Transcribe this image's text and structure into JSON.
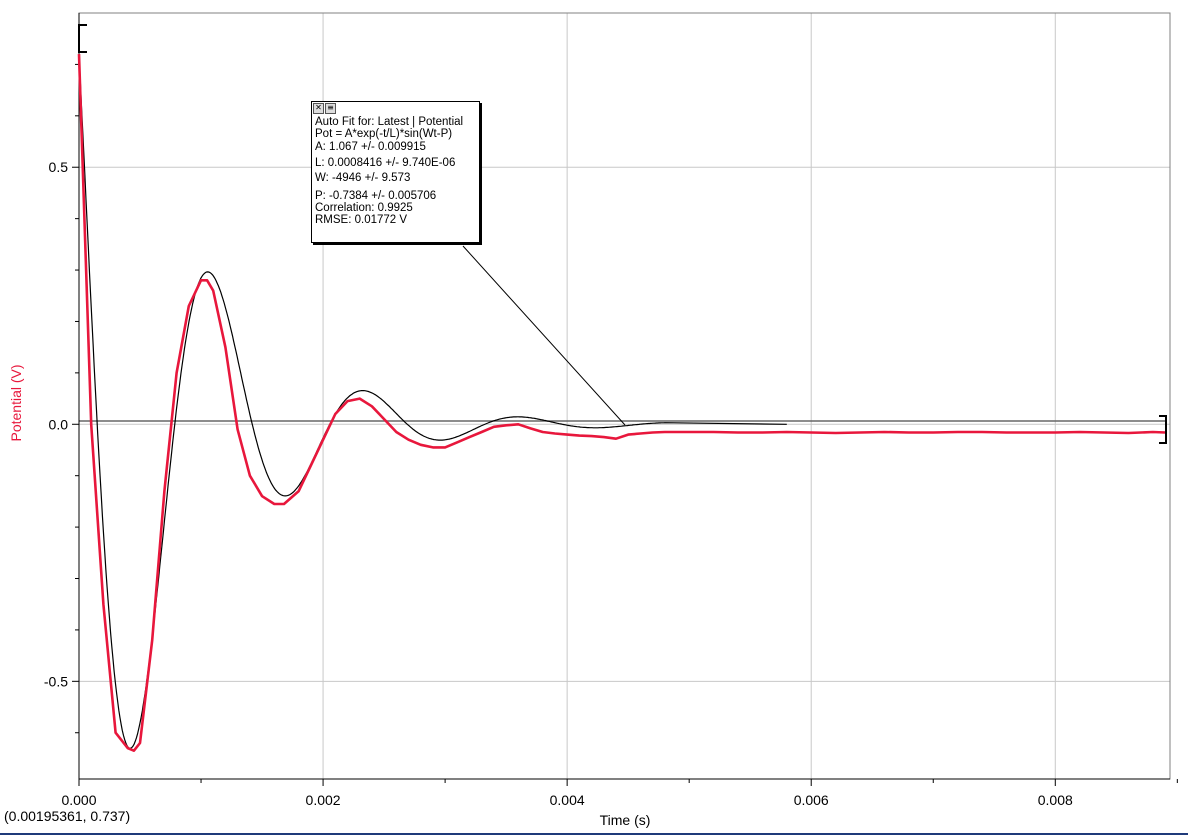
{
  "chart_data": {
    "type": "line",
    "xlabel": "Time (s)",
    "ylabel": "Potential (V)",
    "xlim": [
      0,
      0.00894
    ],
    "ylim": [
      -0.69,
      0.8
    ],
    "grid": true,
    "x_ticks": [
      "0.000",
      "0.002",
      "0.004",
      "0.006",
      "0.008"
    ],
    "y_ticks": [
      "0.5",
      "0.0",
      "-0.5"
    ],
    "x_tick_values": [
      0,
      0.002,
      0.004,
      0.006,
      0.008
    ],
    "y_tick_values": [
      0.5,
      0.0,
      -0.5
    ],
    "series": [
      {
        "name": "Latest | Potential",
        "color": "#e8173c",
        "x": [
          0,
          0.0001,
          0.0002,
          0.0003,
          0.0004,
          0.00045,
          0.0005,
          0.0006,
          0.0007,
          0.0008,
          0.0009,
          0.001,
          0.00105,
          0.0011,
          0.0012,
          0.0013,
          0.0014,
          0.0015,
          0.0016,
          0.00168,
          0.0018,
          0.0019,
          0.002,
          0.0021,
          0.0022,
          0.0023,
          0.0024,
          0.0025,
          0.0026,
          0.0027,
          0.0028,
          0.0029,
          0.003,
          0.0031,
          0.0032,
          0.0033,
          0.0034,
          0.0035,
          0.0036,
          0.0037,
          0.0038,
          0.0039,
          0.004,
          0.0041,
          0.0042,
          0.0043,
          0.0044,
          0.0045,
          0.0046,
          0.0047,
          0.0048,
          0.005,
          0.0052,
          0.0054,
          0.0056,
          0.0058,
          0.006,
          0.0062,
          0.0064,
          0.0066,
          0.0068,
          0.007,
          0.0072,
          0.0074,
          0.0076,
          0.0078,
          0.008,
          0.0082,
          0.0084,
          0.0086,
          0.0088,
          0.0089
        ],
        "y": [
          0.72,
          0.0,
          -0.35,
          -0.6,
          -0.63,
          -0.635,
          -0.62,
          -0.42,
          -0.13,
          0.1,
          0.23,
          0.28,
          0.28,
          0.26,
          0.15,
          -0.01,
          -0.1,
          -0.14,
          -0.155,
          -0.155,
          -0.13,
          -0.08,
          -0.03,
          0.02,
          0.045,
          0.05,
          0.035,
          0.01,
          -0.015,
          -0.03,
          -0.04,
          -0.045,
          -0.045,
          -0.035,
          -0.025,
          -0.015,
          -0.005,
          -0.002,
          0.0,
          -0.008,
          -0.015,
          -0.018,
          -0.02,
          -0.022,
          -0.023,
          -0.025,
          -0.028,
          -0.02,
          -0.018,
          -0.016,
          -0.015,
          -0.015,
          -0.015,
          -0.016,
          -0.016,
          -0.015,
          -0.016,
          -0.017,
          -0.016,
          -0.015,
          -0.016,
          -0.016,
          -0.015,
          -0.015,
          -0.016,
          -0.016,
          -0.016,
          -0.015,
          -0.016,
          -0.017,
          -0.015,
          -0.016
        ]
      },
      {
        "name": "Auto Fit",
        "color": "#000000",
        "model": {
          "A": 1.067,
          "L": 0.0008416,
          "W": -4946,
          "P": -0.7384
        }
      }
    ]
  },
  "fit_box": {
    "line1": "Auto Fit for: Latest | Potential",
    "line2": "Pot = A*exp(-t/L)*sin(Wt-P)",
    "line3": "A: 1.067 +/- 0.009915",
    "line4": "L: 0.0008416 +/- 9.740E-06",
    "line5": "W: -4946 +/- 9.573",
    "line6": "P: -0.7384 +/- 0.005706",
    "line7": "Correlation: 0.9925",
    "line8": "RMSE: 0.01772 V",
    "close_icon": "close-icon",
    "menu_icon": "menu-icon"
  },
  "coordinate_readout": "(0.00195361, 0.737)"
}
